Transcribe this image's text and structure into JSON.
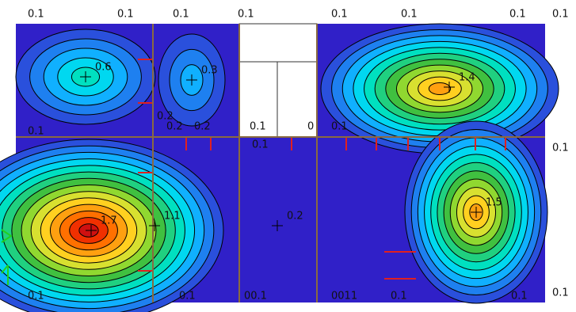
{
  "chart_data": {
    "type": "contour",
    "peak_labels": [
      0.6,
      0.3,
      1.4,
      1.7,
      1.1,
      1.5,
      0.2
    ],
    "edge_labels": [
      0.1,
      0.1,
      0.1,
      0.1,
      0.1,
      0.1,
      0.1,
      0.1,
      0.1,
      0.1
    ],
    "inner_labels": [
      0.1,
      0.2,
      0.2,
      0.2,
      0.1,
      0,
      0.1,
      0.1,
      0.1,
      0.1,
      "00.1",
      "0011",
      0.1,
      0.1
    ]
  }
}
